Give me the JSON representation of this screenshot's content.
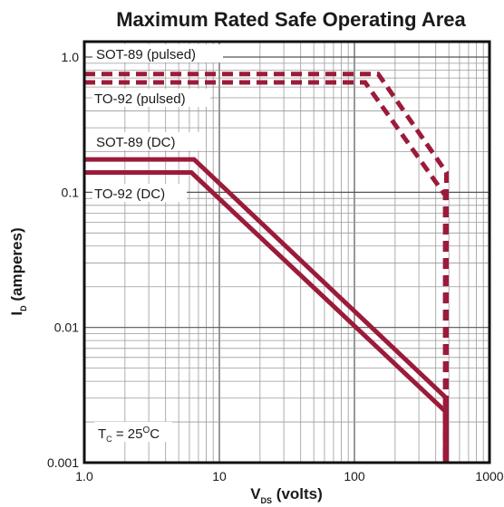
{
  "chart_data": {
    "type": "line",
    "title": "Maximum Rated Safe Operating Area",
    "xlabel": {
      "main": "V",
      "sub": "DS",
      "rest": " (volts)"
    },
    "ylabel": {
      "main": "I",
      "sub": "D",
      "rest": " (amperes)"
    },
    "x_scale": "log",
    "y_scale": "log",
    "xlim": [
      1,
      1000
    ],
    "ylim": [
      0.001,
      1.3
    ],
    "x_ticks": [
      {
        "value": 1,
        "label": "1.0"
      },
      {
        "value": 10,
        "label": "10"
      },
      {
        "value": 100,
        "label": "100"
      },
      {
        "value": 1000,
        "label": "1000"
      }
    ],
    "y_ticks": [
      {
        "value": 1,
        "label": "1.0"
      },
      {
        "value": 0.1,
        "label": "0.1"
      },
      {
        "value": 0.01,
        "label": "0.01"
      },
      {
        "value": 0.001,
        "label": "0.001"
      }
    ],
    "grid": true,
    "series": [
      {
        "name": "SOT-89 (pulsed)",
        "style": "dashed",
        "points": [
          [
            1,
            0.75
          ],
          [
            150,
            0.75
          ],
          [
            480,
            0.14
          ],
          [
            480,
            0.001
          ]
        ]
      },
      {
        "name": "TO-92 (pulsed)",
        "style": "dashed",
        "points": [
          [
            1,
            0.65
          ],
          [
            120,
            0.65
          ],
          [
            470,
            0.095
          ],
          [
            470,
            0.001
          ]
        ]
      },
      {
        "name": "SOT-89 (DC)",
        "style": "solid",
        "points": [
          [
            1,
            0.175
          ],
          [
            6.5,
            0.175
          ],
          [
            480,
            0.003
          ],
          [
            480,
            0.001
          ]
        ]
      },
      {
        "name": "TO-92 (DC)",
        "style": "solid",
        "points": [
          [
            1,
            0.14
          ],
          [
            6.2,
            0.14
          ],
          [
            470,
            0.0024
          ],
          [
            470,
            0.001
          ]
        ]
      }
    ],
    "annotation": {
      "main": "T",
      "sub": "C",
      "rest": " = 25",
      "sup": "O",
      "tail": "C"
    },
    "line_color": "#9b1b3a"
  }
}
